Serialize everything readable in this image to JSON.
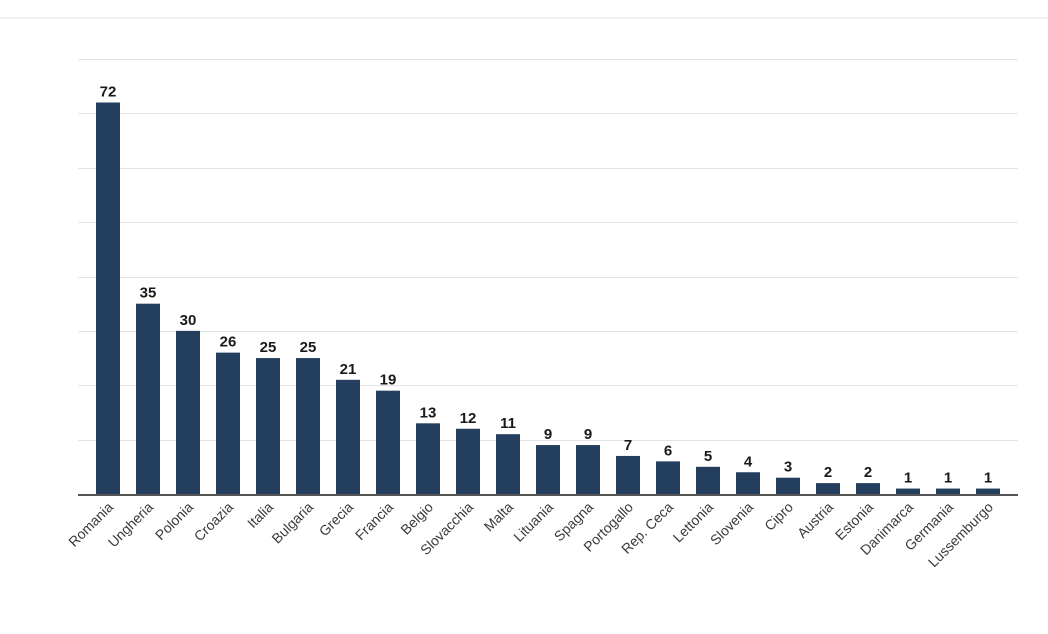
{
  "chart_data": {
    "type": "bar",
    "title": "",
    "xlabel": "",
    "ylabel": "",
    "categories": [
      "Romania",
      "Ungheria",
      "Polonia",
      "Croazia",
      "Italia",
      "Bulgaria",
      "Grecia",
      "Francia",
      "Belgio",
      "Slovacchia",
      "Malta",
      "Lituania",
      "Spagna",
      "Portogallo",
      "Rep. Ceca",
      "Lettonia",
      "Slovenia",
      "Cipro",
      "Austria",
      "Estonia",
      "Danimarca",
      "Germania",
      "Lussemburgo"
    ],
    "values": [
      72,
      35,
      30,
      26,
      25,
      25,
      21,
      19,
      13,
      12,
      11,
      9,
      9,
      7,
      6,
      5,
      4,
      3,
      2,
      2,
      1,
      1,
      1
    ],
    "ylim": [
      0,
      80
    ],
    "grid": true,
    "legend": "none",
    "bar_color": "#243f5e",
    "data_labels": true,
    "y_tick_labels": false
  }
}
